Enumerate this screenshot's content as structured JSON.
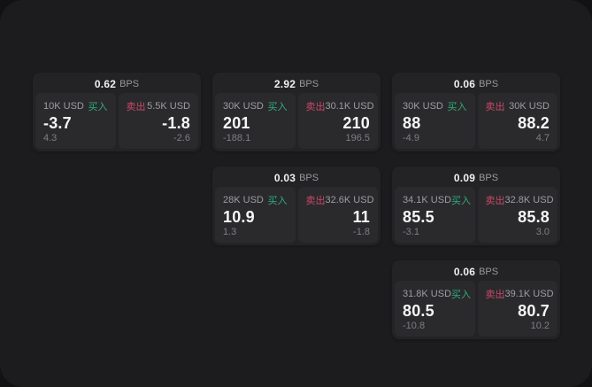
{
  "labels": {
    "bps_unit": "BPS",
    "buy": "买入",
    "sell": "卖出"
  },
  "colors": {
    "buy_green": "#2fae78",
    "sell_red": "#cc4766",
    "card_bg": "#232325",
    "panel_bg": "#2a2a2d",
    "stage_bg": "#1c1c1e"
  },
  "cards": [
    {
      "bps": "0.62",
      "buy": {
        "amount": "10K USD",
        "value": "-3.7",
        "sub": "4.3"
      },
      "sell": {
        "amount": "5.5K USD",
        "value": "-1.8",
        "sub": "-2.6"
      }
    },
    {
      "bps": "2.92",
      "buy": {
        "amount": "30K USD",
        "value": "201",
        "sub": "-188.1"
      },
      "sell": {
        "amount": "30.1K USD",
        "value": "210",
        "sub": "196.5"
      }
    },
    {
      "bps": "0.06",
      "buy": {
        "amount": "30K USD",
        "value": "88",
        "sub": "-4.9"
      },
      "sell": {
        "amount": "30K USD",
        "value": "88.2",
        "sub": "4.7"
      }
    },
    {
      "bps": "0.03",
      "buy": {
        "amount": "28K USD",
        "value": "10.9",
        "sub": "1.3"
      },
      "sell": {
        "amount": "32.6K USD",
        "value": "11",
        "sub": "-1.8"
      }
    },
    {
      "bps": "0.09",
      "buy": {
        "amount": "34.1K USD",
        "value": "85.5",
        "sub": "-3.1"
      },
      "sell": {
        "amount": "32.8K USD",
        "value": "85.8",
        "sub": "3.0"
      }
    },
    {
      "bps": "0.06",
      "buy": {
        "amount": "31.8K USD",
        "value": "80.5",
        "sub": "-10.8"
      },
      "sell": {
        "amount": "39.1K USD",
        "value": "80.7",
        "sub": "10.2"
      }
    }
  ]
}
